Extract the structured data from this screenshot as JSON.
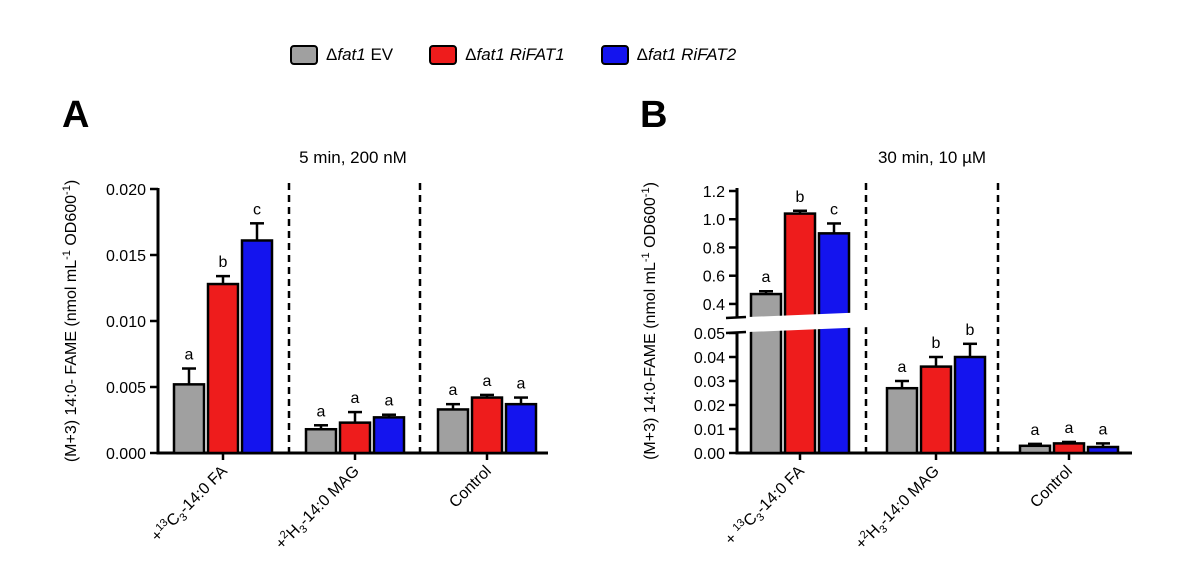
{
  "legend": [
    {
      "delta": "Δ",
      "name": "fat1",
      "suffix": " EV",
      "color": "#a0a0a0"
    },
    {
      "delta": "Δ",
      "name": "fat1 RiFAT1",
      "suffix": "",
      "color": "#ee1c1c"
    },
    {
      "delta": "Δ",
      "name": "fat1 RiFAT2",
      "suffix": "",
      "color": "#1414ee"
    }
  ],
  "chart_data": [
    {
      "type": "bar",
      "panel_label": "A",
      "title": "5 min, 200 nM",
      "ylabel": "(M+3) 14:0- FAME (nmol mL⁻¹ OD600⁻¹)",
      "categories": [
        "+¹³C₃-14:0 FA",
        "+²H₃-14:0 MAG",
        "Control"
      ],
      "category_parts": [
        {
          "pre": "+",
          "sup": "13",
          "mid": "C",
          "sub": "3",
          "post": "-14:0 FA"
        },
        {
          "pre": "+",
          "sup": "2",
          "mid": "H",
          "sub": "3",
          "post": "-14:0 MAG"
        },
        {
          "pre": "",
          "sup": "",
          "mid": "Control",
          "sub": "",
          "post": ""
        }
      ],
      "ylim": [
        0,
        0.02
      ],
      "yticks": [
        "0.000",
        "0.005",
        "0.010",
        "0.015",
        "0.020"
      ],
      "series": [
        {
          "name": "Δfat1 EV",
          "values": [
            0.0052,
            0.0018,
            0.0033
          ],
          "errors": [
            0.0012,
            0.0003,
            0.0004
          ],
          "letters": [
            "a",
            "a",
            "a"
          ]
        },
        {
          "name": "Δfat1 RiFAT1",
          "values": [
            0.0128,
            0.0023,
            0.0042
          ],
          "errors": [
            0.0006,
            0.0008,
            0.0002
          ],
          "letters": [
            "b",
            "a",
            "a"
          ]
        },
        {
          "name": "Δfat1 RiFAT2",
          "values": [
            0.0161,
            0.0027,
            0.0037
          ],
          "errors": [
            0.0013,
            0.0002,
            0.0005
          ],
          "letters": [
            "c",
            "a",
            "a"
          ]
        }
      ]
    },
    {
      "type": "bar",
      "panel_label": "B",
      "title": "30 min, 10 µM",
      "ylabel": "(M+3) 14:0-FAME (nmol mL⁻¹ OD600⁻¹)",
      "categories": [
        "+¹³C₃-14:0 FA",
        "+²H₃-14:0 MAG",
        "Control"
      ],
      "category_parts": [
        {
          "pre": "+ ",
          "sup": "13",
          "mid": "C",
          "sub": "3",
          "post": "-14:0 FA"
        },
        {
          "pre": "+",
          "sup": "2",
          "mid": "H",
          "sub": "3",
          "post": "-14:0 MAG"
        },
        {
          "pre": "",
          "sup": "",
          "mid": "Control",
          "sub": "",
          "post": ""
        }
      ],
      "axis_break": {
        "lower_range": [
          0,
          0.05
        ],
        "upper_range": [
          0.35,
          1.2
        ]
      },
      "yticks_lower": [
        "0.00",
        "0.01",
        "0.02",
        "0.03",
        "0.04",
        "0.05"
      ],
      "yticks_upper": [
        "0.4",
        "0.6",
        "0.8",
        "1.0",
        "1.2"
      ],
      "series": [
        {
          "name": "Δfat1 EV",
          "values": [
            0.47,
            0.027,
            0.003
          ],
          "errors": [
            0.02,
            0.003,
            0.0008
          ],
          "letters": [
            "a",
            "a",
            "a"
          ]
        },
        {
          "name": "Δfat1 RiFAT1",
          "values": [
            1.04,
            0.036,
            0.004
          ],
          "errors": [
            0.02,
            0.004,
            0.0006
          ],
          "letters": [
            "b",
            "b",
            "a"
          ]
        },
        {
          "name": "Δfat1 RiFAT2",
          "values": [
            0.9,
            0.04,
            0.0025
          ],
          "errors": [
            0.07,
            0.0055,
            0.0015
          ],
          "letters": [
            "c",
            "b",
            "a"
          ]
        }
      ]
    }
  ]
}
